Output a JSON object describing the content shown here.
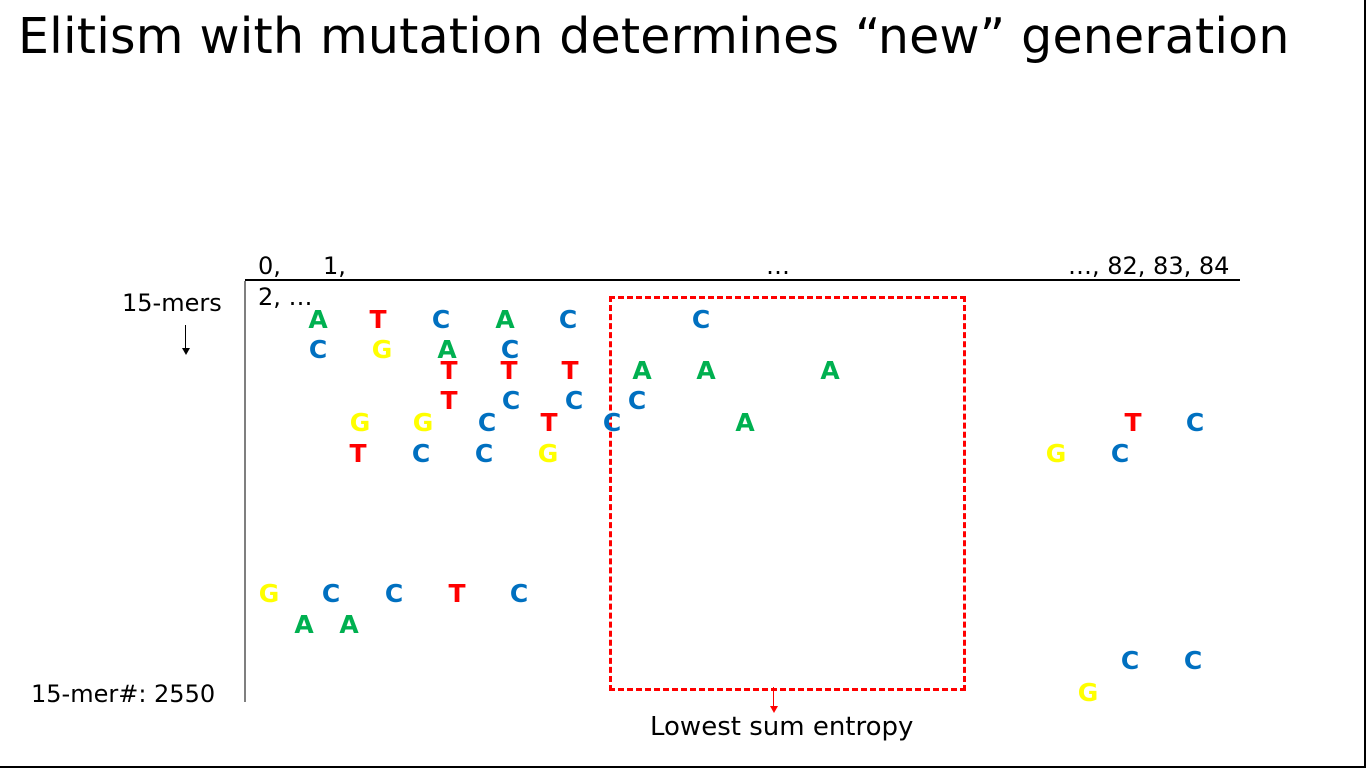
{
  "title": "Elitism with mutation determines “new” generation",
  "axis": {
    "header_left_1": "0,",
    "header_left_2": "1,",
    "header_mid": "…",
    "header_right": "…, 82, 83, 84",
    "header_second": "2, …",
    "row_top": "15-mers",
    "row_bottom": "15-mer#: 2550"
  },
  "annotation": "Lowest sum entropy",
  "colors": {
    "A": "#00b050",
    "T": "#ff0000",
    "C": "#0070c0",
    "G": "#ffff00",
    "box": "#ff0000"
  },
  "bases": [
    "A",
    "T",
    "C",
    "A",
    "C",
    "C",
    "C",
    "G",
    "A",
    "C",
    "T",
    "T",
    "T",
    "A",
    "A",
    "A",
    "T",
    "C",
    "C",
    "C",
    "G",
    "G",
    "C",
    "T",
    "C",
    "A",
    "T",
    "C",
    "T",
    "C",
    "C",
    "G",
    "G",
    "C",
    "G",
    "C",
    "C",
    "T",
    "C",
    "A",
    "A",
    "C",
    "C",
    "G"
  ]
}
